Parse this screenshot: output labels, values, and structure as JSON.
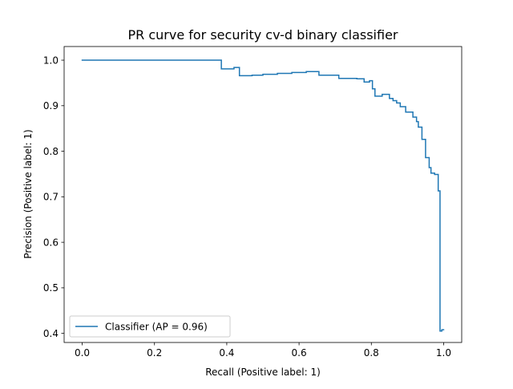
{
  "chart_data": {
    "type": "line",
    "title": "PR curve for security cv-d binary classifier",
    "xlabel": "Recall (Positive label: 1)",
    "ylabel": "Precision (Positive label: 1)",
    "xlim": [
      -0.05,
      1.05
    ],
    "ylim": [
      0.38,
      1.03
    ],
    "xticks": [
      0.0,
      0.2,
      0.4,
      0.6,
      0.8,
      1.0
    ],
    "xtick_labels": [
      "0.0",
      "0.2",
      "0.4",
      "0.6",
      "0.8",
      "1.0"
    ],
    "yticks": [
      0.4,
      0.5,
      0.6,
      0.7,
      0.8,
      0.9,
      1.0
    ],
    "ytick_labels": [
      "0.4",
      "0.5",
      "0.6",
      "0.7",
      "0.8",
      "0.9",
      "1.0"
    ],
    "grid": false,
    "legend_position": "lower-left",
    "series": [
      {
        "name": "Classifier (AP = 0.96)",
        "color": "#1f77b4",
        "drawstyle": "steps-post",
        "x": [
          0.0,
          0.385,
          0.42,
          0.435,
          0.47,
          0.5,
          0.54,
          0.58,
          0.62,
          0.655,
          0.71,
          0.76,
          0.78,
          0.795,
          0.803,
          0.81,
          0.83,
          0.85,
          0.86,
          0.87,
          0.88,
          0.895,
          0.915,
          0.925,
          0.93,
          0.94,
          0.95,
          0.96,
          0.965,
          0.975,
          0.985,
          0.99,
          0.995,
          1.0
        ],
        "y": [
          1.0,
          0.981,
          0.984,
          0.966,
          0.967,
          0.969,
          0.971,
          0.973,
          0.975,
          0.967,
          0.96,
          0.959,
          0.952,
          0.955,
          0.937,
          0.921,
          0.925,
          0.916,
          0.911,
          0.906,
          0.898,
          0.886,
          0.875,
          0.865,
          0.853,
          0.826,
          0.786,
          0.764,
          0.752,
          0.749,
          0.713,
          0.405,
          0.408,
          0.408
        ]
      }
    ]
  }
}
